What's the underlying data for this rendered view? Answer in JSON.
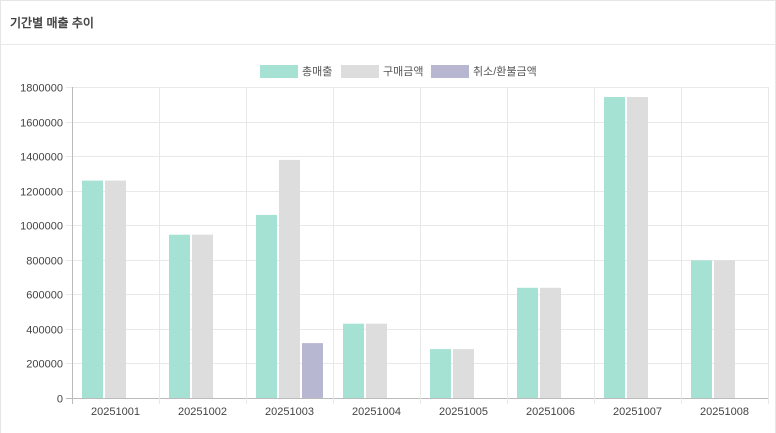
{
  "panel": {
    "title": "기간별 매출 추이"
  },
  "colors": {
    "total": "#a6e2d3",
    "purchase": "#dddddd",
    "refund": "#b7b7d1",
    "grid": "#e8e8e8",
    "axis": "#bbbbbb"
  },
  "chart_data": {
    "type": "bar",
    "categories": [
      "20251001",
      "20251002",
      "20251003",
      "20251004",
      "20251005",
      "20251006",
      "20251007",
      "20251008"
    ],
    "series": [
      {
        "name": "총매출",
        "color": "#a6e2d3",
        "values": [
          1258000,
          945000,
          1060000,
          430000,
          283000,
          638000,
          1742000,
          797000
        ]
      },
      {
        "name": "구매금액",
        "color": "#dddddd",
        "values": [
          1258000,
          945000,
          1378000,
          430000,
          283000,
          638000,
          1742000,
          797000
        ]
      },
      {
        "name": "취소/환불금액",
        "color": "#b7b7d1",
        "values": [
          0,
          0,
          318000,
          0,
          0,
          0,
          0,
          0
        ]
      }
    ],
    "yticks": [
      "0",
      "200000",
      "400000",
      "600000",
      "800000",
      "1000000",
      "1200000",
      "1400000",
      "1600000",
      "1800000"
    ],
    "ylim": [
      0,
      1800000
    ],
    "legend_position": "top-center",
    "grid": true
  }
}
